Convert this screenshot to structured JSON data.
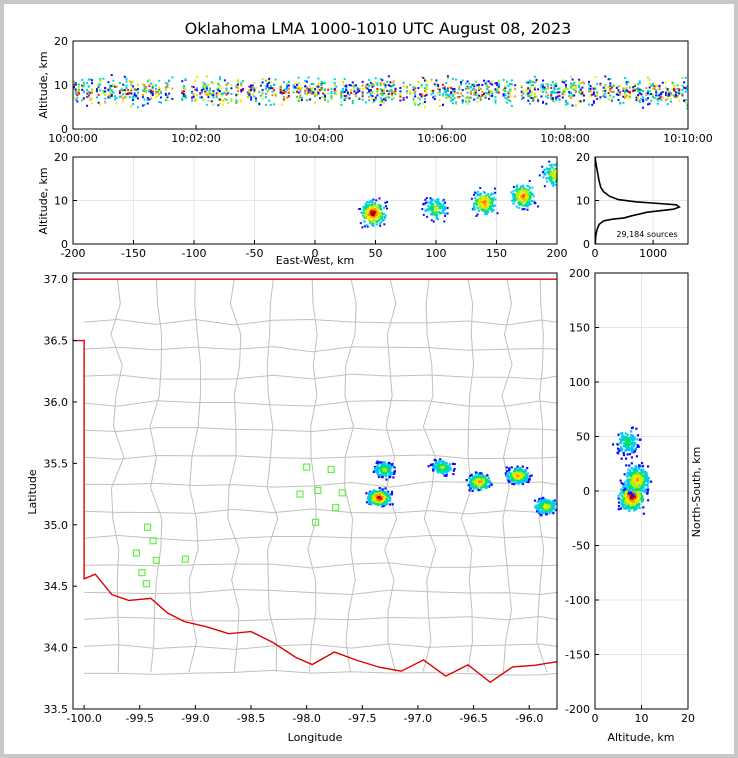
{
  "title": "Oklahoma LMA 1000-1010 UTC August 08, 2023",
  "colors": {
    "frame": "#c8c8c8",
    "state_border": "#e00000",
    "county_lines": "#c0c0c0",
    "stations": "#66ee44",
    "histogram": "#000000",
    "density_scale": [
      "#0a0aff",
      "#00c8ff",
      "#00e07a",
      "#b4f000",
      "#ffe600",
      "#ff8c00",
      "#ff0000",
      "#8b0000",
      "#ffffff"
    ]
  },
  "chart_data": [
    {
      "id": "time_height",
      "type": "heatmap",
      "xlabel": "",
      "ylabel": "Altitude, km",
      "xlim": [
        0,
        600
      ],
      "ylim": [
        0,
        20
      ],
      "x_ticks": [
        0,
        120,
        240,
        360,
        480,
        600
      ],
      "x_tick_labels": [
        "10:00:00",
        "10:02:00",
        "10:04:00",
        "10:06:00",
        "10:08:00",
        "10:10:00"
      ],
      "y_ticks": [
        0,
        10,
        20
      ]
    },
    {
      "id": "east_west_height",
      "type": "heatmap",
      "xlabel": "East-West, km",
      "ylabel": "Altitude, km",
      "xlim": [
        -200,
        200
      ],
      "ylim": [
        0,
        20
      ],
      "x_ticks": [
        -200,
        -150,
        -100,
        -50,
        0,
        50,
        100,
        150,
        200
      ],
      "y_ticks": [
        0,
        10,
        20
      ],
      "clusters": [
        {
          "x": 48,
          "z": 7,
          "strength": 1.0
        },
        {
          "x": 100,
          "z": 8,
          "strength": 0.45
        },
        {
          "x": 140,
          "z": 9.5,
          "strength": 0.75
        },
        {
          "x": 172,
          "z": 11,
          "strength": 0.75
        },
        {
          "x": 198,
          "z": 16,
          "strength": 0.55
        }
      ]
    },
    {
      "id": "altitude_histogram",
      "type": "line",
      "xlabel": "",
      "ylabel": "",
      "xlim": [
        0,
        1600
      ],
      "ylim": [
        0,
        20
      ],
      "x_ticks": [
        0,
        1000
      ],
      "y_ticks": [
        0,
        10,
        20
      ],
      "annotation": "29,184 sources",
      "series": [
        {
          "x": [
            5,
            10,
            20,
            40,
            70,
            150,
            300,
            500,
            640,
            900,
            1350,
            1450,
            1400,
            1100,
            700,
            400,
            250,
            150,
            100,
            70,
            50,
            30,
            10,
            2
          ],
          "y": [
            0.0,
            1.5,
            2.5,
            3.5,
            4.5,
            5.3,
            5.7,
            6.0,
            6.5,
            7.3,
            8.0,
            8.5,
            9.0,
            9.3,
            9.7,
            10.2,
            11.0,
            12.0,
            13.0,
            14.5,
            16.0,
            17.5,
            19.0,
            20.0
          ]
        }
      ]
    },
    {
      "id": "plan_view",
      "type": "heatmap",
      "xlabel": "Longitude",
      "ylabel": "Latitude",
      "xlim": [
        -100.1,
        -95.75
      ],
      "ylim": [
        33.5,
        37.05
      ],
      "x_ticks": [
        -100.0,
        -99.5,
        -99.0,
        -98.5,
        -98.0,
        -97.5,
        -97.0,
        -96.5,
        -96.0
      ],
      "x_tick_labels": [
        "-100.0",
        "-99.5",
        "-99.0",
        "-98.5",
        "-98.0",
        "-97.5",
        "-97.0",
        "-96.5",
        "-96.0"
      ],
      "y_ticks": [
        33.5,
        34.0,
        34.5,
        35.0,
        35.5,
        36.0,
        36.5,
        37.0
      ],
      "y_tick_labels": [
        "33.5",
        "34.0",
        "34.5",
        "35.0",
        "35.5",
        "36.0",
        "36.5",
        "37.0"
      ],
      "stations": [
        [
          -98.0,
          35.47
        ],
        [
          -98.06,
          35.25
        ],
        [
          -97.9,
          35.28
        ],
        [
          -97.92,
          35.02
        ],
        [
          -97.78,
          35.45
        ],
        [
          -97.74,
          35.14
        ],
        [
          -97.68,
          35.26
        ],
        [
          -99.43,
          34.98
        ],
        [
          -99.38,
          34.87
        ],
        [
          -99.53,
          34.77
        ],
        [
          -99.35,
          34.71
        ],
        [
          -99.09,
          34.72
        ],
        [
          -99.48,
          34.61
        ],
        [
          -99.44,
          34.52
        ]
      ],
      "clusters": [
        {
          "lon": -97.35,
          "lat": 35.22,
          "strength": 1.0
        },
        {
          "lon": -97.3,
          "lat": 35.45,
          "strength": 0.45
        },
        {
          "lon": -96.78,
          "lat": 35.47,
          "strength": 0.45
        },
        {
          "lon": -96.45,
          "lat": 35.35,
          "strength": 0.75
        },
        {
          "lon": -96.1,
          "lat": 35.4,
          "strength": 0.75
        },
        {
          "lon": -95.85,
          "lat": 35.15,
          "strength": 0.55
        }
      ]
    },
    {
      "id": "north_south_height",
      "type": "heatmap",
      "xlabel": "Altitude, km",
      "ylabel": "North-South, km",
      "xlim": [
        0,
        20
      ],
      "ylim": [
        -200,
        200
      ],
      "x_ticks": [
        0,
        10,
        20
      ],
      "y_ticks": [
        -200,
        -150,
        -100,
        -50,
        0,
        50,
        100,
        150,
        200
      ],
      "clusters": [
        {
          "z": 8,
          "y": -5,
          "strength": 1.0
        },
        {
          "z": 9,
          "y": 10,
          "strength": 0.7
        },
        {
          "z": 7,
          "y": 45,
          "strength": 0.35
        }
      ]
    }
  ]
}
